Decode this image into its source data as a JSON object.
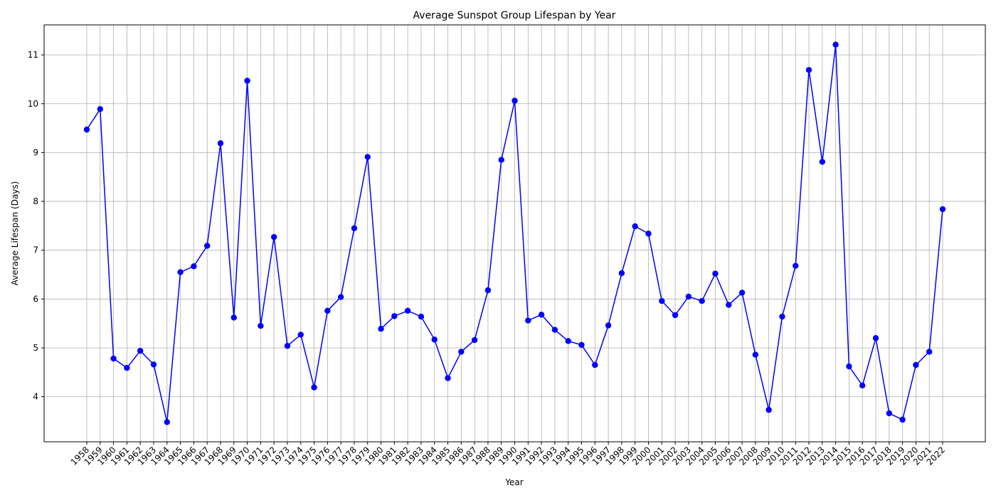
{
  "chart_data": {
    "type": "line",
    "title": "Average Sunspot Group Lifespan by Year",
    "xlabel": "Year",
    "ylabel": "Average Lifespan (Days)",
    "x": [
      1958,
      1959,
      1960,
      1961,
      1962,
      1963,
      1964,
      1965,
      1966,
      1967,
      1968,
      1969,
      1970,
      1971,
      1972,
      1973,
      1974,
      1975,
      1976,
      1977,
      1978,
      1979,
      1980,
      1981,
      1982,
      1983,
      1984,
      1985,
      1986,
      1987,
      1988,
      1989,
      1990,
      1991,
      1992,
      1993,
      1994,
      1995,
      1996,
      1997,
      1998,
      1999,
      2000,
      2001,
      2002,
      2003,
      2004,
      2005,
      2006,
      2007,
      2008,
      2009,
      2010,
      2011,
      2012,
      2013,
      2014,
      2015,
      2016,
      2017,
      2018,
      2019,
      2020,
      2021,
      2022
    ],
    "series": [
      {
        "values": [
          9.47,
          9.89,
          4.78,
          4.59,
          4.94,
          4.66,
          3.48,
          6.55,
          6.67,
          7.09,
          9.19,
          5.62,
          10.47,
          5.45,
          7.27,
          5.04,
          5.27,
          4.19,
          5.76,
          6.04,
          7.45,
          8.91,
          5.39,
          5.65,
          5.76,
          5.64,
          5.17,
          4.38,
          4.92,
          5.16,
          6.18,
          8.85,
          10.06,
          5.56,
          5.68,
          5.37,
          5.14,
          5.06,
          4.65,
          5.46,
          6.53,
          7.49,
          7.34,
          5.96,
          5.67,
          6.05,
          5.96,
          6.52,
          5.88,
          6.13,
          4.86,
          3.73,
          5.64,
          6.68,
          10.69,
          8.81,
          11.21,
          4.62,
          4.23,
          5.2,
          3.66,
          3.53,
          4.65,
          4.92,
          7.84
        ]
      }
    ],
    "yticks": [
      4,
      5,
      6,
      7,
      8,
      9,
      10,
      11
    ],
    "ylim": [
      3.0765,
      11.6135
    ],
    "grid": true,
    "line_color": "#0000ff",
    "marker_color": "#0000ff"
  }
}
